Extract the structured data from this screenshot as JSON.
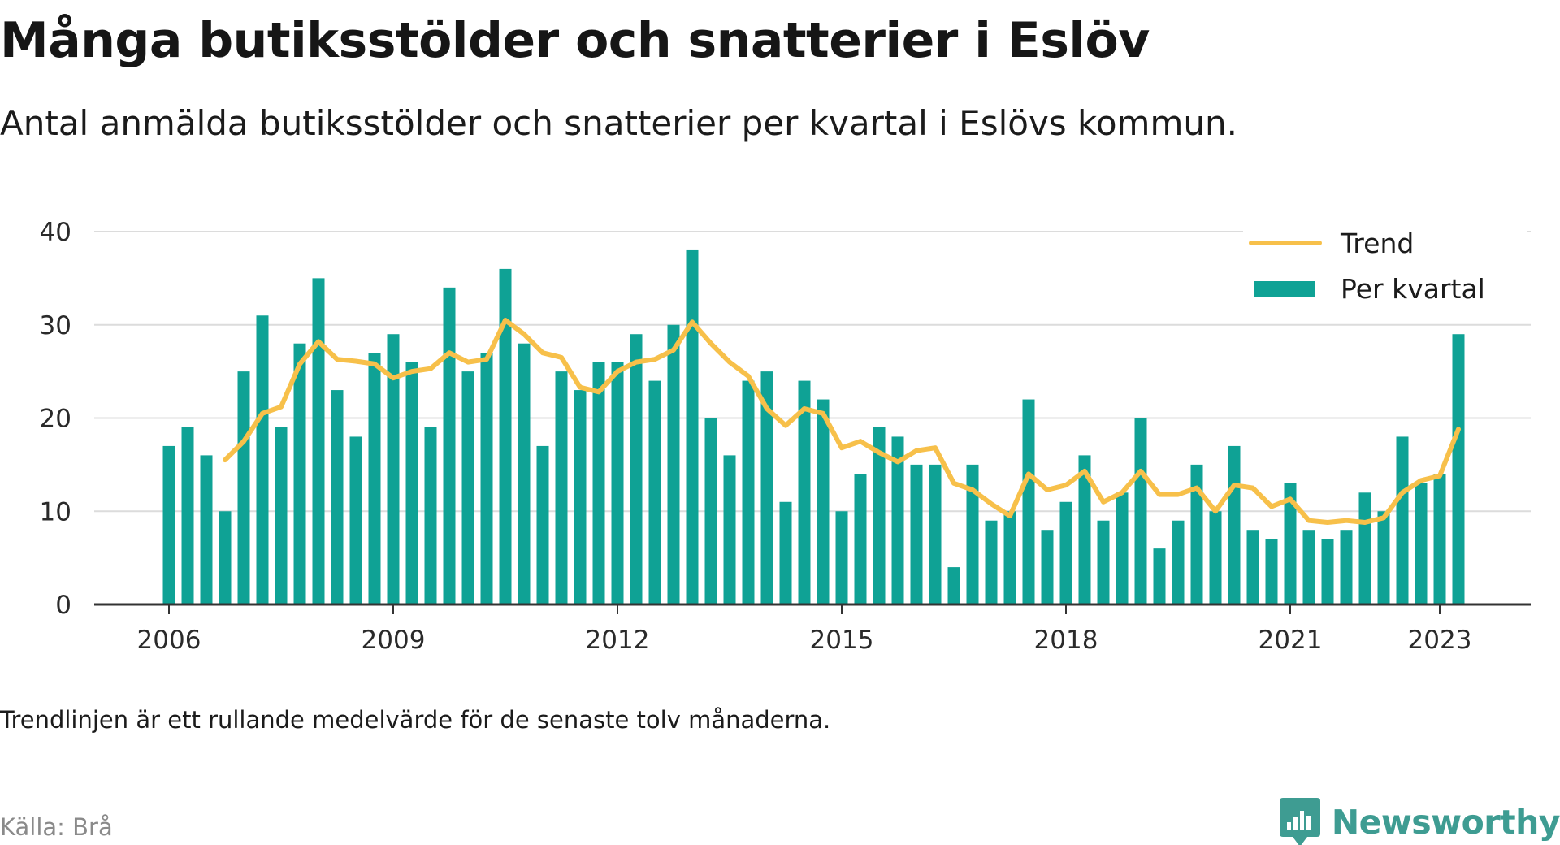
{
  "title": "Många butiksstölder och snatterier i Eslöv",
  "subtitle": "Antal anmälda butiksstölder och snatterier per kvartal i Eslövs kommun.",
  "note": "Trendlinjen är ett rullande medelvärde för de senaste tolv månaderna.",
  "source": "Källa: Brå",
  "brand": {
    "name": "Newsworthy",
    "icon": "newsworthy-logo-icon"
  },
  "colors": {
    "bar": "#0fa295",
    "trend": "#f7c04a",
    "grid": "#dcdcdc",
    "axis": "#333333",
    "brand": "#3e9c92"
  },
  "chart_data": {
    "type": "bar",
    "xlabel": "",
    "ylabel": "",
    "ylim": [
      0,
      40
    ],
    "yticks": [
      0,
      10,
      20,
      30,
      40
    ],
    "xticks": [
      "2006",
      "2009",
      "2012",
      "2015",
      "2018",
      "2021",
      "2023"
    ],
    "grid": true,
    "legend_position": "top-right",
    "categories": [
      "2006 Q1",
      "2006 Q2",
      "2006 Q3",
      "2006 Q4",
      "2007 Q1",
      "2007 Q2",
      "2007 Q3",
      "2007 Q4",
      "2008 Q1",
      "2008 Q2",
      "2008 Q3",
      "2008 Q4",
      "2009 Q1",
      "2009 Q2",
      "2009 Q3",
      "2009 Q4",
      "2010 Q1",
      "2010 Q2",
      "2010 Q3",
      "2010 Q4",
      "2011 Q1",
      "2011 Q2",
      "2011 Q3",
      "2011 Q4",
      "2012 Q1",
      "2012 Q2",
      "2012 Q3",
      "2012 Q4",
      "2013 Q1",
      "2013 Q2",
      "2013 Q3",
      "2013 Q4",
      "2014 Q1",
      "2014 Q2",
      "2014 Q3",
      "2014 Q4",
      "2015 Q1",
      "2015 Q2",
      "2015 Q3",
      "2015 Q4",
      "2016 Q1",
      "2016 Q2",
      "2016 Q3",
      "2016 Q4",
      "2017 Q1",
      "2017 Q2",
      "2017 Q3",
      "2017 Q4",
      "2018 Q1",
      "2018 Q2",
      "2018 Q3",
      "2018 Q4",
      "2019 Q1",
      "2019 Q2",
      "2019 Q3",
      "2019 Q4",
      "2020 Q1",
      "2020 Q2",
      "2020 Q3",
      "2020 Q4",
      "2021 Q1",
      "2021 Q2",
      "2021 Q3",
      "2021 Q4",
      "2022 Q1",
      "2022 Q2",
      "2022 Q3",
      "2022 Q4",
      "2023 Q1",
      "2023 Q2"
    ],
    "series": [
      {
        "name": "Per kvartal",
        "type": "bar",
        "values": [
          17,
          19,
          16,
          10,
          25,
          31,
          19,
          28,
          35,
          23,
          18,
          27,
          29,
          26,
          19,
          34,
          25,
          27,
          36,
          28,
          17,
          25,
          23,
          26,
          26,
          29,
          24,
          30,
          38,
          20,
          16,
          24,
          25,
          11,
          24,
          22,
          10,
          14,
          19,
          18,
          15,
          15,
          4,
          15,
          9,
          10,
          22,
          8,
          11,
          16,
          9,
          12,
          20,
          6,
          9,
          15,
          10,
          17,
          8,
          7,
          13,
          8,
          7,
          8,
          12,
          10,
          18,
          13,
          14,
          29
        ]
      },
      {
        "name": "Trend",
        "type": "line",
        "values": [
          null,
          null,
          null,
          15.5,
          17.5,
          20.5,
          21.2,
          25.8,
          28.2,
          26.3,
          26.1,
          25.8,
          24.3,
          25.0,
          25.3,
          27.0,
          26.0,
          26.3,
          30.5,
          29.0,
          27.0,
          26.5,
          23.3,
          22.8,
          25.0,
          26.0,
          26.3,
          27.3,
          30.3,
          28.0,
          26.0,
          24.5,
          21.0,
          19.2,
          21.0,
          20.5,
          16.8,
          17.5,
          16.3,
          15.3,
          16.5,
          16.8,
          13.0,
          12.3,
          10.8,
          9.5,
          14.0,
          12.3,
          12.8,
          14.3,
          11.0,
          12.0,
          14.3,
          11.8,
          11.8,
          12.5,
          10.0,
          12.8,
          12.5,
          10.5,
          11.3,
          9.0,
          8.8,
          9.0,
          8.8,
          9.3,
          12.0,
          13.3,
          13.8,
          18.8
        ]
      }
    ]
  }
}
